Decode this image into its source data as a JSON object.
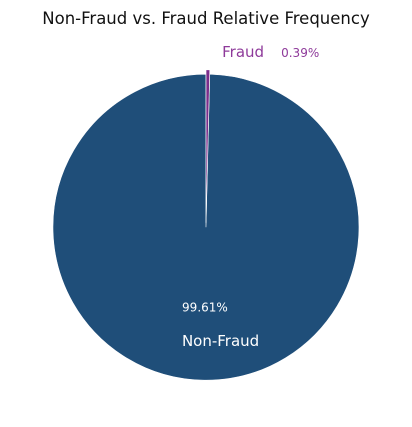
{
  "chart_data": {
    "type": "pie",
    "title": "Non-Fraud vs. Fraud Relative Frequency",
    "slices": [
      {
        "label": "Non-Fraud",
        "value": 99.61,
        "value_label": "99.61%",
        "color": "#1f4e79",
        "text_color": "#ffffff"
      },
      {
        "label": "Fraud",
        "value": 0.39,
        "value_label": "0.39%",
        "color": "#7b2d8b",
        "text_color": "#8e3a9a"
      }
    ],
    "start_angle": "top",
    "direction": "counterclockwise",
    "explode": "both slices offset outward",
    "legend": "none"
  }
}
